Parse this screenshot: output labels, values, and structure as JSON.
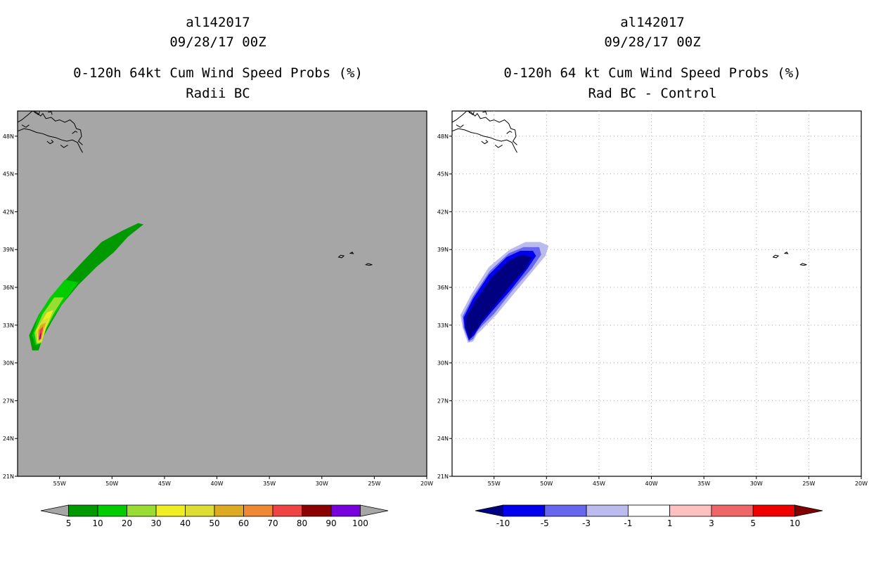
{
  "chart_data": [
    {
      "type": "map",
      "title_lines": [
        "al142017",
        "09/28/17 00Z",
        "0-120h 64kt Cum Wind Speed Probs (%)",
        "Radii BC"
      ],
      "x_ticks": [
        "55W",
        "50W",
        "45W",
        "40W",
        "35W",
        "30W",
        "25W",
        "20W"
      ],
      "y_ticks": [
        "48N",
        "45N",
        "42N",
        "39N",
        "36N",
        "33N",
        "30N",
        "27N",
        "24N",
        "21N"
      ],
      "lon_range": [
        -59,
        -20
      ],
      "lat_range": [
        21,
        50
      ],
      "grid": false,
      "background": "#a6a6a6",
      "colorbar": {
        "labels": [
          "5",
          "10",
          "20",
          "30",
          "40",
          "50",
          "60",
          "70",
          "80",
          "90",
          "100"
        ],
        "colors": [
          "#a6a6a6",
          "#009a00",
          "#00cc00",
          "#99dd33",
          "#eeee22",
          "#dddd33",
          "#ddaa22",
          "#ee8833",
          "#ee4444",
          "#8b0000",
          "#7700dd",
          "#a6a6a6"
        ]
      },
      "contours": [
        {
          "value": 5,
          "color": "#009a00",
          "points": [
            [
              -57.6,
              31.0
            ],
            [
              -57.0,
              31.0
            ],
            [
              -56.6,
              32.0
            ],
            [
              -55.8,
              33.2
            ],
            [
              -54.8,
              34.6
            ],
            [
              -53.2,
              36.2
            ],
            [
              -51.5,
              37.6
            ],
            [
              -49.8,
              38.8
            ],
            [
              -48.5,
              40.0
            ],
            [
              -47.0,
              41.0
            ],
            [
              -47.5,
              41.1
            ],
            [
              -49.0,
              40.5
            ],
            [
              -51.0,
              39.6
            ],
            [
              -52.5,
              38.3
            ],
            [
              -54.2,
              36.8
            ],
            [
              -55.8,
              35.3
            ],
            [
              -57.0,
              33.8
            ],
            [
              -57.9,
              32.2
            ]
          ]
        },
        {
          "value": 10,
          "color": "#00cc00",
          "points": [
            [
              -57.3,
              31.4
            ],
            [
              -56.8,
              31.5
            ],
            [
              -56.2,
              32.8
            ],
            [
              -55.0,
              34.4
            ],
            [
              -53.2,
              36.4
            ],
            [
              -54.5,
              36.6
            ],
            [
              -56.0,
              35.1
            ],
            [
              -57.1,
              33.6
            ],
            [
              -57.6,
              32.2
            ]
          ]
        },
        {
          "value": 20,
          "color": "#99dd33",
          "points": [
            [
              -57.2,
              31.5
            ],
            [
              -56.7,
              31.6
            ],
            [
              -56.3,
              32.7
            ],
            [
              -55.5,
              34.0
            ],
            [
              -54.6,
              35.2
            ],
            [
              -55.5,
              35.2
            ],
            [
              -56.6,
              33.9
            ],
            [
              -57.4,
              32.4
            ]
          ]
        },
        {
          "value": 30,
          "color": "#eeee22",
          "points": [
            [
              -57.1,
              31.6
            ],
            [
              -56.7,
              31.7
            ],
            [
              -56.3,
              32.8
            ],
            [
              -55.8,
              33.8
            ],
            [
              -55.6,
              34.2
            ],
            [
              -56.2,
              34.0
            ],
            [
              -57.2,
              32.6
            ]
          ]
        },
        {
          "value": 40,
          "color": "#dddd33",
          "points": [
            [
              -57.0,
              31.6
            ],
            [
              -56.7,
              31.8
            ],
            [
              -56.4,
              32.8
            ],
            [
              -56.0,
              33.6
            ],
            [
              -56.6,
              33.4
            ],
            [
              -57.1,
              32.6
            ]
          ]
        },
        {
          "value": 50,
          "color": "#ddaa22",
          "points": [
            [
              -57.0,
              31.7
            ],
            [
              -56.7,
              31.9
            ],
            [
              -56.5,
              32.7
            ],
            [
              -56.3,
              33.2
            ],
            [
              -56.8,
              33.0
            ],
            [
              -57.1,
              32.5
            ]
          ]
        },
        {
          "value": 70,
          "color": "#ee4444",
          "points": [
            [
              -57.0,
              31.8
            ],
            [
              -56.8,
              31.9
            ],
            [
              -56.6,
              32.6
            ],
            [
              -56.6,
              32.9
            ],
            [
              -56.9,
              32.6
            ]
          ]
        },
        {
          "value": 90,
          "color": "#7700dd",
          "points": [
            [
              -56.95,
              31.85
            ],
            [
              -56.8,
              31.95
            ],
            [
              -56.75,
              32.4
            ],
            [
              -56.85,
              32.3
            ]
          ]
        }
      ]
    },
    {
      "type": "map",
      "title_lines": [
        "al142017",
        "09/28/17 00Z",
        "0-120h 64 kt Cum Wind Speed Probs (%)",
        "Rad BC - Control"
      ],
      "x_ticks": [
        "55W",
        "50W",
        "45W",
        "40W",
        "35W",
        "30W",
        "25W",
        "20W"
      ],
      "y_ticks": [
        "48N",
        "45N",
        "42N",
        "39N",
        "36N",
        "33N",
        "30N",
        "27N",
        "24N",
        "21N"
      ],
      "lon_range": [
        -59,
        -20
      ],
      "lat_range": [
        21,
        50
      ],
      "grid": true,
      "background": "#ffffff",
      "colorbar": {
        "labels": [
          "-10",
          "-5",
          "-3",
          "-1",
          "1",
          "3",
          "5",
          "10"
        ],
        "colors": [
          "#000080",
          "#0000ee",
          "#6666ee",
          "#bbbbee",
          "#ffffff",
          "#ffc0c0",
          "#ee6666",
          "#ee0000",
          "#800000"
        ]
      },
      "contours": [
        {
          "value": -1,
          "color": "#bbbbee",
          "points": [
            [
              -58.0,
              32.8
            ],
            [
              -57.5,
              31.6
            ],
            [
              -57.0,
              31.7
            ],
            [
              -56.6,
              32.3
            ],
            [
              -56.2,
              32.6
            ],
            [
              -54.8,
              33.8
            ],
            [
              -53.0,
              35.6
            ],
            [
              -51.2,
              37.4
            ],
            [
              -50.1,
              38.5
            ],
            [
              -49.8,
              39.3
            ],
            [
              -50.6,
              39.6
            ],
            [
              -52.0,
              39.6
            ],
            [
              -53.5,
              39.0
            ],
            [
              -55.5,
              37.6
            ],
            [
              -57.2,
              35.4
            ],
            [
              -58.2,
              33.8
            ]
          ]
        },
        {
          "value": -3,
          "color": "#6666ee",
          "points": [
            [
              -57.9,
              32.8
            ],
            [
              -57.4,
              31.7
            ],
            [
              -57.0,
              31.9
            ],
            [
              -56.6,
              32.5
            ],
            [
              -56.2,
              32.9
            ],
            [
              -55.0,
              33.9
            ],
            [
              -53.2,
              35.8
            ],
            [
              -51.4,
              37.5
            ],
            [
              -50.5,
              38.6
            ],
            [
              -50.7,
              39.2
            ],
            [
              -52.2,
              39.2
            ],
            [
              -53.6,
              38.7
            ],
            [
              -55.4,
              37.3
            ],
            [
              -57.0,
              35.3
            ],
            [
              -58.0,
              33.7
            ]
          ]
        },
        {
          "value": -5,
          "color": "#0000ee",
          "points": [
            [
              -57.8,
              32.8
            ],
            [
              -57.4,
              31.8
            ],
            [
              -56.9,
              32.2
            ],
            [
              -56.6,
              32.6
            ],
            [
              -56.2,
              33.1
            ],
            [
              -55.2,
              34.1
            ],
            [
              -53.4,
              35.8
            ],
            [
              -51.8,
              37.5
            ],
            [
              -51.0,
              38.5
            ],
            [
              -51.3,
              38.9
            ],
            [
              -52.5,
              38.9
            ],
            [
              -53.8,
              38.4
            ],
            [
              -55.5,
              37.0
            ],
            [
              -57.0,
              35.1
            ],
            [
              -57.9,
              33.6
            ]
          ]
        },
        {
          "value": -10,
          "color": "#000080",
          "points": [
            [
              -57.7,
              32.8
            ],
            [
              -57.3,
              31.9
            ],
            [
              -56.9,
              32.5
            ],
            [
              -56.5,
              32.8
            ],
            [
              -56.1,
              33.4
            ],
            [
              -55.0,
              34.5
            ],
            [
              -53.5,
              36.1
            ],
            [
              -52.0,
              37.5
            ],
            [
              -51.4,
              38.4
            ],
            [
              -52.4,
              38.6
            ],
            [
              -53.6,
              38.1
            ],
            [
              -55.2,
              36.8
            ],
            [
              -56.8,
              34.9
            ],
            [
              -57.7,
              33.6
            ]
          ]
        }
      ]
    }
  ]
}
